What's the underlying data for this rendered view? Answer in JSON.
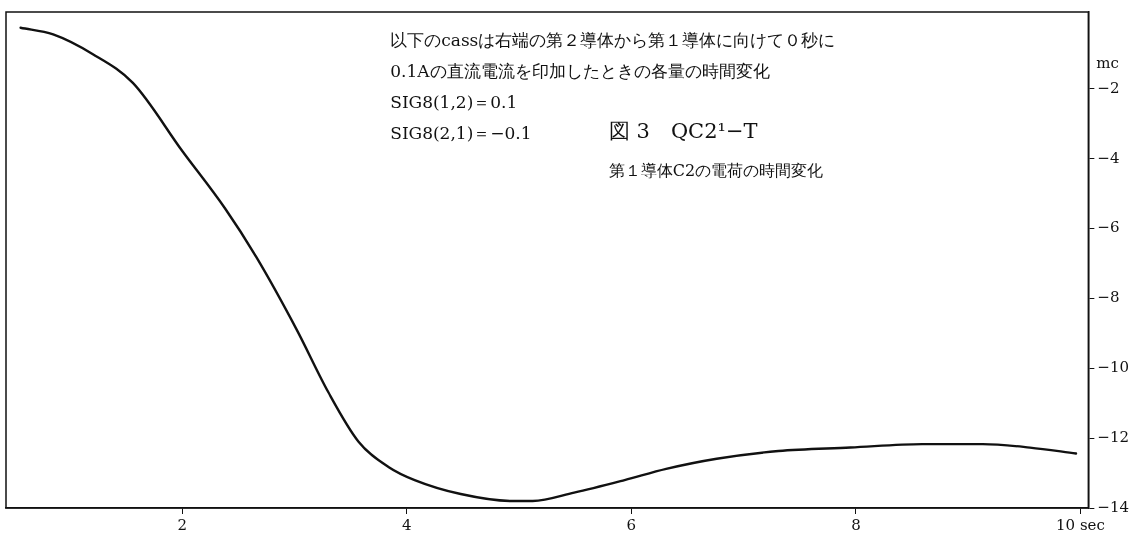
{
  "chart_data": {
    "type": "line",
    "title": "図 3　QC2¹−T",
    "subtitle": "第１導体C2の電荷の時間変化",
    "ylabel": "mc",
    "annotations": [
      "以下のcassは右端の第２導体から第１導体に向けて０秒に",
      "0.1Aの直流電流を印加したときの各量の時間変化",
      "SIG8(1,2)＝0.1",
      "SIG8(2,1)＝−0.1"
    ],
    "x": [
      0.56,
      0.85,
      1.2,
      1.56,
      2.0,
      2.38,
      2.66,
      3.02,
      3.3,
      3.57,
      3.84,
      4.07,
      4.48,
      4.94,
      5.12,
      5.49,
      5.94,
      6.31,
      6.76,
      7.31,
      7.95,
      8.59,
      9.13,
      9.55,
      9.96
    ],
    "series": [
      {
        "color": "#111111",
        "values": [
          -0.25,
          -0.44,
          -1.0,
          -1.83,
          -3.78,
          -5.42,
          -6.82,
          -8.9,
          -10.68,
          -12.1,
          -12.83,
          -13.2,
          -13.6,
          -13.8,
          -13.8,
          -13.56,
          -13.2,
          -12.88,
          -12.59,
          -12.37,
          -12.27,
          -12.17,
          -12.17,
          -12.27,
          -12.44
        ]
      }
    ],
    "xlim": [
      0.43,
      10.07
    ],
    "ylim": [
      -14,
      0.2
    ],
    "xticks": [
      2,
      4,
      6,
      8,
      {
        "value": 10,
        "label": "10 sec"
      }
    ],
    "yticks": [
      {
        "value": -2,
        "label": "−2"
      },
      {
        "value": -4,
        "label": "−4"
      },
      {
        "value": -6,
        "label": "−6"
      },
      {
        "value": -8,
        "label": "−8"
      },
      {
        "value": -10,
        "label": "−10"
      },
      {
        "value": -12,
        "label": "−12"
      },
      {
        "value": -14,
        "label": "−14"
      }
    ],
    "grid": false,
    "legend": false,
    "marker": "none",
    "line_style": "solid"
  }
}
